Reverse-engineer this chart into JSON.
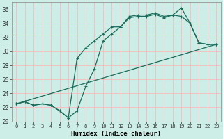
{
  "xlabel": "Humidex (Indice chaleur)",
  "bg_color": "#cceee6",
  "grid_color": "#f5c0c0",
  "line_color": "#1a6b5a",
  "xlim": [
    -0.5,
    23.5
  ],
  "ylim": [
    20,
    37
  ],
  "xticks": [
    0,
    1,
    2,
    3,
    4,
    5,
    6,
    7,
    8,
    9,
    10,
    11,
    12,
    13,
    14,
    15,
    16,
    17,
    18,
    19,
    20,
    21,
    22,
    23
  ],
  "yticks": [
    20,
    22,
    24,
    26,
    28,
    30,
    32,
    34,
    36
  ],
  "line_diagonal": {
    "x": [
      0,
      23
    ],
    "y": [
      22.5,
      31.0
    ]
  },
  "line_dip": {
    "x": [
      0,
      1,
      2,
      3,
      4,
      5,
      6,
      7,
      8,
      9,
      10,
      11,
      12,
      13,
      14,
      15,
      16,
      17,
      18,
      19,
      20,
      21,
      22,
      23
    ],
    "y": [
      22.5,
      22.8,
      22.3,
      22.5,
      22.3,
      21.5,
      20.5,
      21.5,
      25.0,
      27.5,
      31.5,
      32.5,
      33.5,
      34.8,
      35.0,
      35.0,
      35.3,
      34.8,
      35.2,
      36.2,
      34.0,
      31.2,
      31.0,
      31.0
    ]
  },
  "line_upper": {
    "x": [
      0,
      1,
      2,
      3,
      4,
      5,
      6,
      7,
      8,
      9,
      10,
      11,
      12,
      13,
      14,
      15,
      16,
      17,
      18,
      19,
      20,
      21,
      22,
      23
    ],
    "y": [
      22.5,
      22.8,
      22.3,
      22.5,
      22.3,
      21.5,
      20.5,
      29.0,
      30.5,
      31.5,
      32.5,
      33.5,
      33.5,
      35.0,
      35.2,
      35.2,
      35.5,
      35.0,
      35.2,
      35.0,
      34.0,
      31.2,
      31.0,
      31.0
    ]
  }
}
